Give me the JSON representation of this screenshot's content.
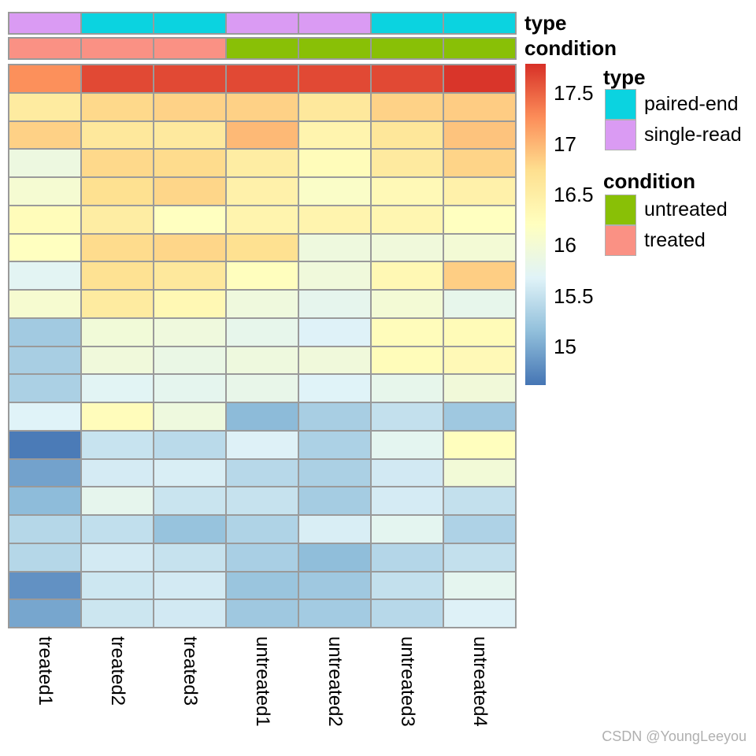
{
  "watermark": "CSDN @YoungLeeyou",
  "annotations": [
    {
      "label": "type",
      "per_column": [
        "single-read",
        "paired-end",
        "paired-end",
        "single-read",
        "single-read",
        "paired-end",
        "paired-end"
      ]
    },
    {
      "label": "condition",
      "per_column": [
        "treated",
        "treated",
        "treated",
        "untreated",
        "untreated",
        "untreated",
        "untreated"
      ]
    }
  ],
  "annotation_colors": {
    "paired-end": "#0bd3e0",
    "single-read": "#da9bf3",
    "untreated": "#89c006",
    "treated": "#fa9184"
  },
  "legends": [
    {
      "title": "type",
      "items": [
        "paired-end",
        "single-read"
      ]
    },
    {
      "title": "condition",
      "items": [
        "untreated",
        "treated"
      ]
    }
  ],
  "chart_data": {
    "type": "heatmap",
    "columns": [
      "treated1",
      "treated2",
      "treated3",
      "untreated1",
      "untreated2",
      "untreated3",
      "untreated4"
    ],
    "column_annotations": {
      "type": [
        "single-read",
        "paired-end",
        "paired-end",
        "single-read",
        "single-read",
        "paired-end",
        "paired-end"
      ],
      "condition": [
        "treated",
        "treated",
        "treated",
        "untreated",
        "untreated",
        "untreated",
        "untreated"
      ]
    },
    "values": [
      [
        17.24,
        17.65,
        17.65,
        17.65,
        17.65,
        17.65,
        17.76
      ],
      [
        16.55,
        16.78,
        16.82,
        16.83,
        16.6,
        16.82,
        16.86
      ],
      [
        16.83,
        16.6,
        16.58,
        16.98,
        16.4,
        16.62,
        16.92
      ],
      [
        15.9,
        16.78,
        16.76,
        16.52,
        16.26,
        16.56,
        16.81
      ],
      [
        16.03,
        16.72,
        16.8,
        16.44,
        16.12,
        16.3,
        16.44
      ],
      [
        16.26,
        16.52,
        16.2,
        16.4,
        16.4,
        16.36,
        16.2
      ],
      [
        16.2,
        16.76,
        16.8,
        16.72,
        15.92,
        15.95,
        16.0
      ],
      [
        15.72,
        16.7,
        16.6,
        16.22,
        15.95,
        16.33,
        16.85
      ],
      [
        16.05,
        16.55,
        16.33,
        15.93,
        15.78,
        16.0,
        15.8
      ],
      [
        15.26,
        15.97,
        15.93,
        15.8,
        15.67,
        16.25,
        16.28
      ],
      [
        15.3,
        15.95,
        15.85,
        15.92,
        15.95,
        16.26,
        16.3
      ],
      [
        15.32,
        15.71,
        15.77,
        15.82,
        15.68,
        15.8,
        15.96
      ],
      [
        15.68,
        16.25,
        15.92,
        15.12,
        15.3,
        15.48,
        15.24
      ],
      [
        14.66,
        15.51,
        15.42,
        15.66,
        15.33,
        15.75,
        16.22
      ],
      [
        14.94,
        15.6,
        15.63,
        15.4,
        15.32,
        15.58,
        15.98
      ],
      [
        15.13,
        15.78,
        15.52,
        15.5,
        15.28,
        15.6,
        15.48
      ],
      [
        15.39,
        15.47,
        15.19,
        15.35,
        15.63,
        15.75,
        15.34
      ],
      [
        15.39,
        15.59,
        15.5,
        15.31,
        15.14,
        15.38,
        15.48
      ],
      [
        14.82,
        15.55,
        15.59,
        15.21,
        15.24,
        15.48,
        15.76
      ],
      [
        14.97,
        15.54,
        15.58,
        15.24,
        15.27,
        15.4,
        15.66
      ]
    ],
    "value_domain": [
      14.62,
      17.79
    ],
    "palette_low_to_high": [
      "#4575b4",
      "#91bfdb",
      "#e0f3f8",
      "#ffffbf",
      "#fee090",
      "#fc8d59",
      "#d73027"
    ],
    "colorbar_ticks": [
      {
        "label": "17.5",
        "value": 17.5
      },
      {
        "label": "17",
        "value": 17.0
      },
      {
        "label": "16.5",
        "value": 16.5
      },
      {
        "label": "16",
        "value": 16.0
      },
      {
        "label": "15.5",
        "value": 15.5
      },
      {
        "label": "15",
        "value": 15.0
      }
    ],
    "grid_line_color": "#9a9a9a",
    "legend_position": "right"
  }
}
